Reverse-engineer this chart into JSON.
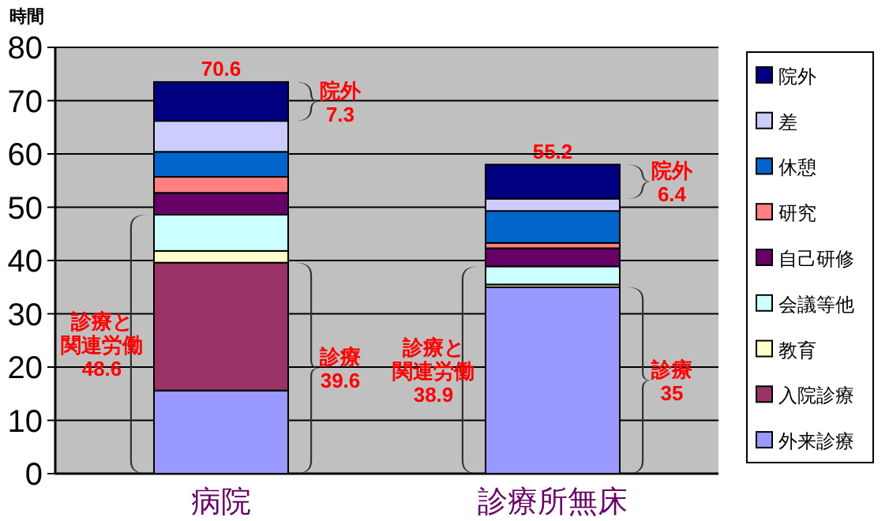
{
  "chart_data": {
    "type": "bar",
    "stacked": true,
    "ylabel": "時間",
    "categories": [
      "病院",
      "診療所無床"
    ],
    "ylim": [
      0,
      80
    ],
    "yticks": [
      0,
      10,
      20,
      30,
      40,
      50,
      60,
      70,
      80
    ],
    "grid": "y",
    "legend": "right",
    "series": [
      {
        "name": "外来診療",
        "color": "#9999ff",
        "values": [
          15.6,
          35
        ]
      },
      {
        "name": "入院診療",
        "color": "#993366",
        "values": [
          24.0,
          0
        ]
      },
      {
        "name": "教育",
        "color": "#ffffcc",
        "values": [
          2.2,
          0.5
        ]
      },
      {
        "name": "会議等他",
        "color": "#ccffff",
        "values": [
          6.8,
          3.4
        ]
      },
      {
        "name": "自己研修",
        "color": "#660066",
        "values": [
          4.1,
          3.4
        ]
      },
      {
        "name": "研究",
        "color": "#ff8080",
        "values": [
          3.0,
          1.0
        ]
      },
      {
        "name": "休憩",
        "color": "#0066cc",
        "values": [
          4.7,
          6.0
        ]
      },
      {
        "name": "差",
        "color": "#ccccff",
        "values": [
          5.8,
          2.3
        ]
      },
      {
        "name": "院外",
        "color": "#000080",
        "values": [
          7.3,
          6.4
        ]
      }
    ],
    "annotations": [
      "70.6",
      "院外\n7.3",
      "診療と関連労働\n48.6",
      "診療\n39.6",
      "55.2",
      "院外\n6.4",
      "診療と関連労働\n38.9",
      "診療\n35"
    ]
  }
}
